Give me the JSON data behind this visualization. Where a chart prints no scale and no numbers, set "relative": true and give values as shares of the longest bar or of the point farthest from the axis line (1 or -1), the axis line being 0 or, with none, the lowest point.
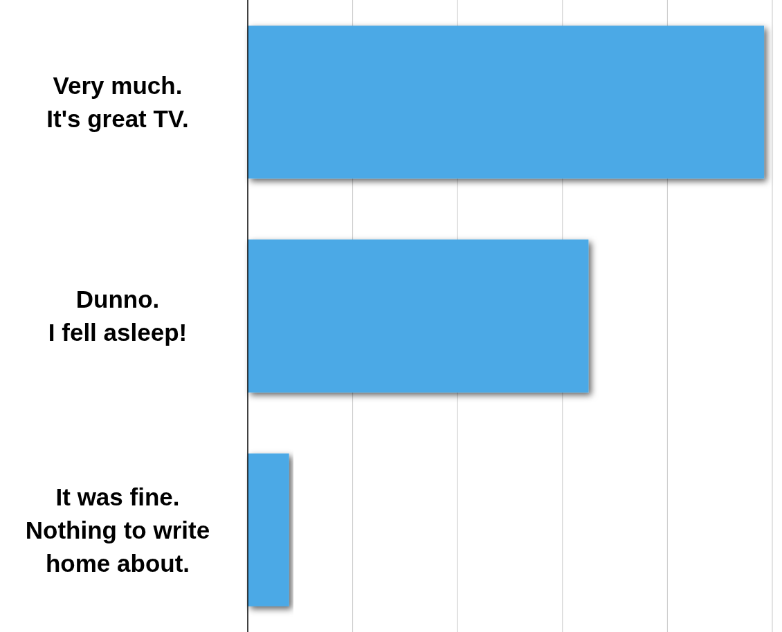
{
  "chart_data": {
    "type": "bar",
    "orientation": "horizontal",
    "relative": true,
    "categories": [
      "Very much.\nIt's great TV.",
      "Dunno.\nI fell asleep!",
      "It was fine.\nNothing to write\nhome about."
    ],
    "values": [
      1,
      0.66,
      0.08
    ],
    "color": "#4ba9e6",
    "grid": "x"
  }
}
